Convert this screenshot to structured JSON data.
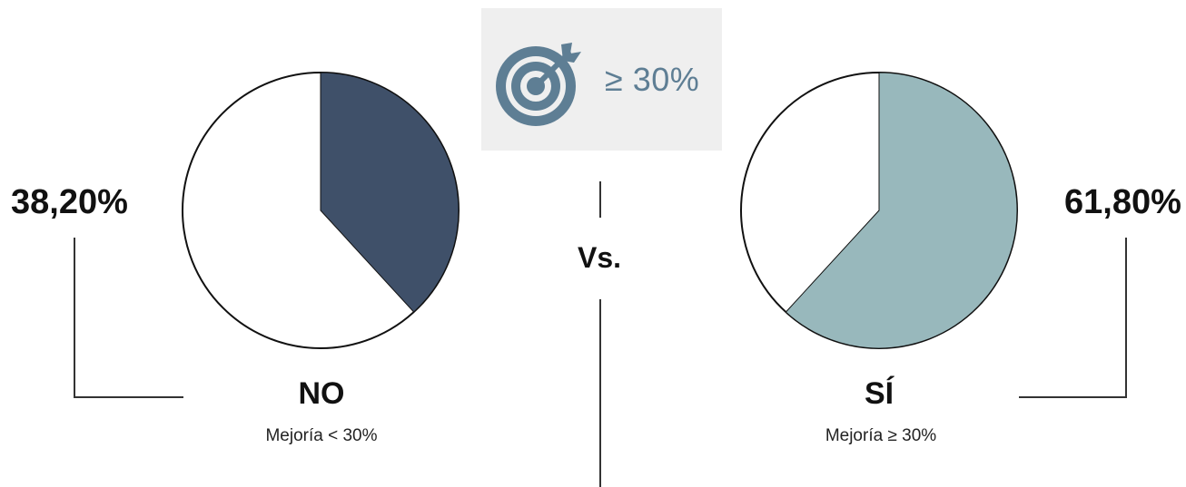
{
  "target": {
    "text": "≥ 30%",
    "icon": "target-arrow-icon",
    "color": "#5e7e94"
  },
  "vs_label": "Vs.",
  "chart_data": [
    {
      "type": "pie",
      "categories": [
        "NO",
        ""
      ],
      "values": [
        38.2,
        61.8
      ],
      "data_label": "38,20%",
      "label": "NO",
      "sublabel": "Mejoría < 30%",
      "colors": [
        "#3f5069",
        "#ffffff"
      ]
    },
    {
      "type": "pie",
      "categories": [
        "SÍ",
        ""
      ],
      "values": [
        61.8,
        38.2
      ],
      "data_label": "61,80%",
      "label": "SÍ",
      "sublabel": "Mejoría ≥ 30%",
      "colors": [
        "#98b8bc",
        "#ffffff"
      ]
    }
  ]
}
